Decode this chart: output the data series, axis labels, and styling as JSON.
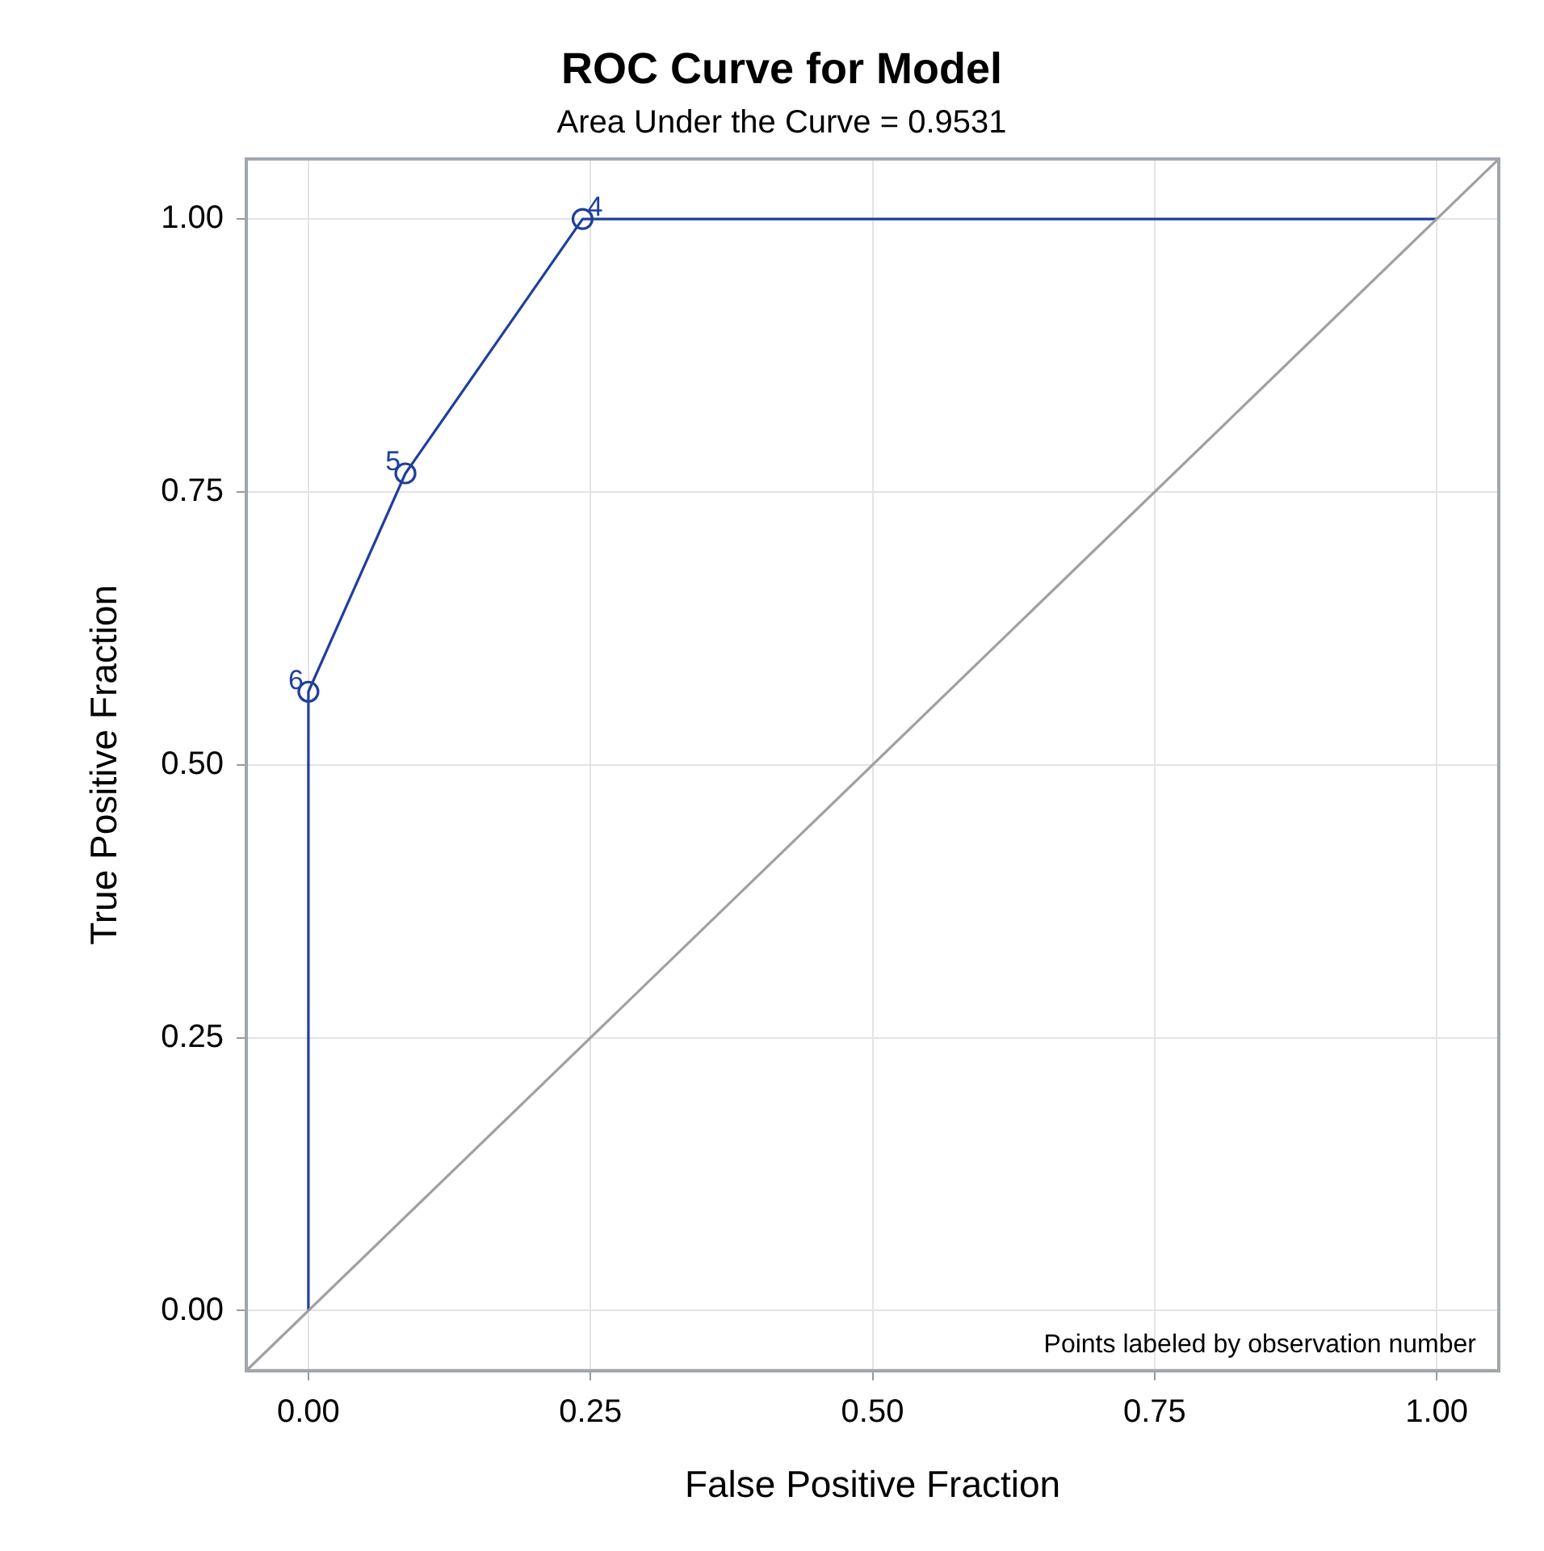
{
  "chart_data": {
    "type": "line",
    "title": "ROC Curve for Model",
    "subtitle": "Area Under the Curve = 0.9531",
    "xlabel": "False Positive Fraction",
    "ylabel": "True Positive Fraction",
    "xlim": [
      -0.055,
      1.055
    ],
    "ylim": [
      -0.055,
      1.055
    ],
    "xticks": [
      {
        "value": 0,
        "label": "0.00"
      },
      {
        "value": 0.25,
        "label": "0.25"
      },
      {
        "value": 0.5,
        "label": "0.50"
      },
      {
        "value": 0.75,
        "label": "0.75"
      },
      {
        "value": 1,
        "label": "1.00"
      }
    ],
    "yticks": [
      {
        "value": 0,
        "label": "0.00"
      },
      {
        "value": 0.25,
        "label": "0.25"
      },
      {
        "value": 0.5,
        "label": "0.50"
      },
      {
        "value": 0.75,
        "label": "0.75"
      },
      {
        "value": 1,
        "label": "1.00"
      }
    ],
    "grid": true,
    "legend": false,
    "series": [
      {
        "color": "#a0a0a0",
        "x": [
          -0.055,
          1.055
        ],
        "values": [
          -0.055,
          1.055
        ],
        "marker": "none"
      },
      {
        "color": "#1f3f9f",
        "x": [
          0,
          0,
          0.086,
          0.243,
          1
        ],
        "values": [
          0,
          0.567,
          0.767,
          1,
          1
        ],
        "marker": "none"
      },
      {
        "type": "scatter",
        "color": "#1f3f9f",
        "x": [
          0,
          0.086,
          0.243
        ],
        "values": [
          0.567,
          0.767,
          1
        ],
        "marker": "circle"
      }
    ],
    "annotations": [
      {
        "text": "6",
        "x": 0,
        "y": 0.567
      },
      {
        "text": "5",
        "x": 0.086,
        "y": 0.767
      },
      {
        "text": "4",
        "x": 0.243,
        "y": 1
      },
      "Points labeled by observation number"
    ]
  }
}
